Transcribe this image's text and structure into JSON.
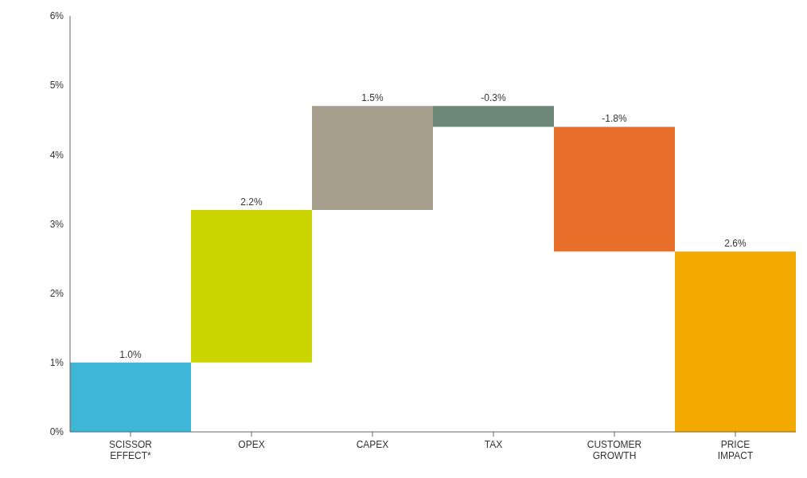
{
  "chart_data": {
    "type": "bar",
    "categories": [
      "SCISSOR EFFECT*",
      "OPEX",
      "CAPEX",
      "TAX",
      "CUSTOMER GROWTH",
      "PRICE IMPACT"
    ],
    "values": [
      1.0,
      2.2,
      1.5,
      -0.3,
      -1.8,
      2.6
    ],
    "base": [
      0,
      1.0,
      3.2,
      4.7,
      4.4,
      0
    ],
    "colors": [
      "#3db6d8",
      "#c9d400",
      "#a69f8d",
      "#6e8878",
      "#e8702a",
      "#f2aa00"
    ],
    "value_labels": [
      "1.0%",
      "2.2%",
      "1.5%",
      "-0.3%",
      "-1.8%",
      "2.6%"
    ],
    "ylim": [
      0,
      6
    ],
    "yticks": [
      {
        "value": 0,
        "label": "0%"
      },
      {
        "value": 1,
        "label": "1%"
      },
      {
        "value": 2,
        "label": "2%"
      },
      {
        "value": 3,
        "label": "3%"
      },
      {
        "value": 4,
        "label": "4%"
      },
      {
        "value": 5,
        "label": "5%"
      },
      {
        "value": 6,
        "label": "6%"
      }
    ],
    "grid": false
  }
}
